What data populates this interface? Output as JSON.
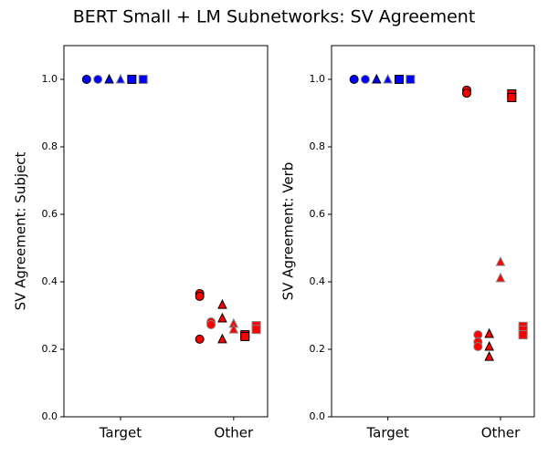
{
  "title": "BERT Small + LM Subnetworks: SV Agreement",
  "chart_data": [
    {
      "type": "scatter",
      "y_label": "SV Agreement: Subject",
      "xlim": [
        -0.5,
        1.3
      ],
      "xticks": [
        {
          "value": 0,
          "label": "Target"
        },
        {
          "value": 1,
          "label": "Other"
        }
      ],
      "ylim": [
        0,
        1.1
      ],
      "yticks": [
        {
          "value": 0,
          "label": "0.0"
        },
        {
          "value": 0.2,
          "label": "0.2"
        },
        {
          "value": 0.4,
          "label": "0.4"
        },
        {
          "value": 0.6,
          "label": "0.6"
        },
        {
          "value": 0.8,
          "label": "0.8"
        },
        {
          "value": 1,
          "label": "1.0"
        }
      ],
      "series": [
        {
          "marker": "circle",
          "edgecolor": "#000000",
          "x": [
            -0.3,
            0.7,
            0.7,
            0.7
          ],
          "values": [
            1.0,
            0.365,
            0.357,
            0.23
          ],
          "colors": [
            "#0000ff",
            "#ff0000",
            "#ff0000",
            "#ff0000"
          ]
        },
        {
          "marker": "circle",
          "edgecolor": "#808080",
          "x": [
            -0.2,
            0.8,
            0.8
          ],
          "values": [
            1.0,
            0.281,
            0.273
          ],
          "colors": [
            "#0000ff",
            "#ff0000",
            "#ff0000"
          ]
        },
        {
          "marker": "triangle",
          "edgecolor": "#000000",
          "x": [
            -0.1,
            0.9,
            0.9,
            0.9
          ],
          "values": [
            1.0,
            0.332,
            0.292,
            0.23
          ],
          "colors": [
            "#0000ff",
            "#ff0000",
            "#ff0000",
            "#ff0000"
          ]
        },
        {
          "marker": "triangle",
          "edgecolor": "#808080",
          "x": [
            0,
            1,
            1
          ],
          "values": [
            1.0,
            0.276,
            0.259
          ],
          "colors": [
            "#0000ff",
            "#ff0000",
            "#ff0000"
          ]
        },
        {
          "marker": "square",
          "edgecolor": "#000000",
          "x": [
            0.1,
            1.1,
            1.1
          ],
          "values": [
            1.0,
            0.243,
            0.238
          ],
          "colors": [
            "#0000ff",
            "#ff0000",
            "#ff0000"
          ]
        },
        {
          "marker": "square",
          "edgecolor": "#808080",
          "x": [
            0.2,
            1.2,
            1.2
          ],
          "values": [
            1.0,
            0.27,
            0.259
          ],
          "colors": [
            "#0000ff",
            "#ff0000",
            "#ff0000"
          ]
        }
      ]
    },
    {
      "type": "scatter",
      "y_label": "SV Agreement: Verb",
      "xlim": [
        -0.5,
        1.3
      ],
      "xticks": [
        {
          "value": 0,
          "label": "Target"
        },
        {
          "value": 1,
          "label": "Other"
        }
      ],
      "ylim": [
        0,
        1.1
      ],
      "yticks": [
        {
          "value": 0,
          "label": "0.0"
        },
        {
          "value": 0.2,
          "label": "0.2"
        },
        {
          "value": 0.4,
          "label": "0.4"
        },
        {
          "value": 0.6,
          "label": "0.6"
        },
        {
          "value": 0.8,
          "label": "0.8"
        },
        {
          "value": 1,
          "label": "1.0"
        }
      ],
      "series": [
        {
          "marker": "circle",
          "edgecolor": "#000000",
          "x": [
            -0.3,
            0.7,
            0.7
          ],
          "values": [
            1.0,
            0.968,
            0.959
          ],
          "colors": [
            "#0000ff",
            "#ff0000",
            "#ff0000"
          ]
        },
        {
          "marker": "circle",
          "edgecolor": "#808080",
          "x": [
            -0.2,
            0.8,
            0.8,
            0.8
          ],
          "values": [
            1.0,
            0.243,
            0.222,
            0.208
          ],
          "colors": [
            "#0000ff",
            "#ff0000",
            "#ff0000",
            "#ff0000"
          ]
        },
        {
          "marker": "triangle",
          "edgecolor": "#000000",
          "x": [
            -0.1,
            0.9,
            0.9,
            0.9
          ],
          "values": [
            1.0,
            0.246,
            0.208,
            0.178
          ],
          "colors": [
            "#0000ff",
            "#ff0000",
            "#ff0000",
            "#ff0000"
          ]
        },
        {
          "marker": "triangle",
          "edgecolor": "#808080",
          "x": [
            0,
            1,
            1
          ],
          "values": [
            1.0,
            0.459,
            0.411
          ],
          "colors": [
            "#0000ff",
            "#ff0000",
            "#ff0000"
          ]
        },
        {
          "marker": "square",
          "edgecolor": "#000000",
          "x": [
            0.1,
            1.1,
            1.1
          ],
          "values": [
            1.0,
            0.957,
            0.946
          ],
          "colors": [
            "#0000ff",
            "#ff0000",
            "#ff0000"
          ]
        },
        {
          "marker": "square",
          "edgecolor": "#808080",
          "x": [
            0.2,
            1.2,
            1.2,
            1.2
          ],
          "values": [
            1.0,
            0.268,
            0.257,
            0.243
          ],
          "colors": [
            "#0000ff",
            "#ff0000",
            "#ff0000",
            "#ff0000"
          ]
        }
      ]
    }
  ]
}
